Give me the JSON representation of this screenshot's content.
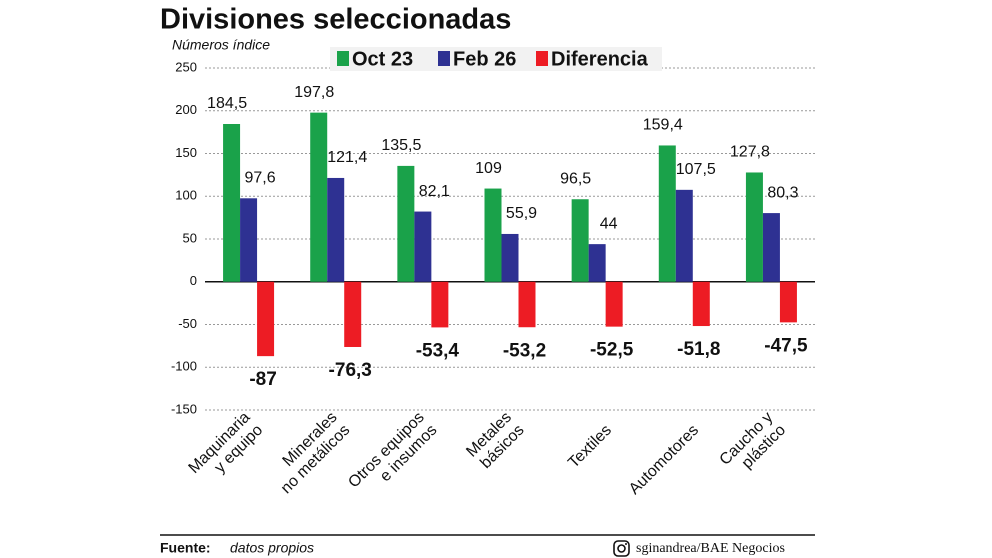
{
  "chart_data": {
    "type": "bar",
    "title": "Divisiones seleccionadas",
    "subtitle": "Números índice",
    "categories": [
      "Maquinaria\ny equipo",
      "Minerales\nno metálicos",
      "Otros equipos\ne insumos",
      "Metales\nbásicos",
      "Textiles",
      "Automotores",
      "Caucho y\nplástico"
    ],
    "series": [
      {
        "name": "Oct 23",
        "color": "#1aa24a",
        "values": [
          184.5,
          197.8,
          135.5,
          109,
          96.5,
          159.4,
          127.8
        ],
        "value_labels": [
          "184,5",
          "197,8",
          "135,5",
          "109",
          "96,5",
          "159,4",
          "127,8"
        ]
      },
      {
        "name": "Feb 26",
        "color": "#2e3192",
        "values": [
          97.6,
          121.4,
          82.1,
          55.9,
          44,
          107.5,
          80.3
        ],
        "value_labels": [
          "97,6",
          "121,4",
          "82,1",
          "55,9",
          "44",
          "107,5",
          "80,3"
        ]
      },
      {
        "name": "Diferencia",
        "color": "#ed1c24",
        "values": [
          -87,
          -76.3,
          -53.4,
          -53.2,
          -52.5,
          -51.8,
          -47.5
        ],
        "value_labels": [
          "-87",
          "-76,3",
          "-53,4",
          "-53,2",
          "-52,5",
          "-51,8",
          "-47,5"
        ]
      }
    ],
    "ylim": [
      -150,
      250
    ],
    "yticks": [
      -150,
      -100,
      -50,
      0,
      50,
      100,
      150,
      200,
      250
    ],
    "grid": true,
    "source_label": "Fuente:",
    "source": "datos propios",
    "credit": "sginandrea/BAE Negocios"
  }
}
